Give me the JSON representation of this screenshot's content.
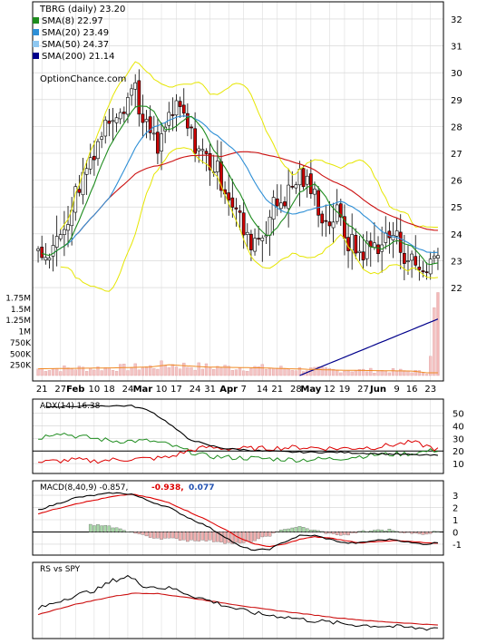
{
  "chart_data": {
    "type": "candlestick",
    "ticker_label": "TBRG (daily) 23.20",
    "watermark": "OptionChance.com",
    "legend": [
      {
        "label": "SMA(8) 22.97",
        "color": "#1e8c1e"
      },
      {
        "label": "SMA(20) 23.49",
        "color": "#2e8fd6"
      },
      {
        "label": "SMA(50) 24.37",
        "color": "#8ec7f0"
      },
      {
        "label": "SMA(200) 21.14",
        "color": "#00008b"
      }
    ],
    "price_ticks": [
      "32",
      "31",
      "30",
      "29",
      "28",
      "27",
      "26",
      "25",
      "24",
      "23",
      "22"
    ],
    "price_range": [
      21.8,
      32.2
    ],
    "volume_ticks": [
      "1.75M",
      "1.5M",
      "1.25M",
      "1M",
      "750K",
      "500K",
      "250K"
    ],
    "volume_range": [
      0,
      1900000
    ],
    "x_labels": [
      "21",
      "27",
      "Feb",
      "10",
      "18",
      "24",
      "Mar",
      "10",
      "17",
      "24",
      "31",
      "Apr",
      "7",
      "14",
      "21",
      "28",
      "May",
      "12",
      "19",
      "27",
      "Jun",
      "9",
      "16",
      "23"
    ],
    "bold_x_labels": [
      "Feb",
      "Mar",
      "Apr",
      "May",
      "Jun"
    ],
    "price_key_points": [
      [
        0,
        23.3
      ],
      [
        5,
        23.6
      ],
      [
        10,
        25.5
      ],
      [
        15,
        27.2
      ],
      [
        20,
        28.6
      ],
      [
        23,
        28.9
      ],
      [
        26,
        29.6
      ],
      [
        28,
        28.0
      ],
      [
        30,
        27.8
      ],
      [
        32,
        27.0
      ],
      [
        35,
        28.4
      ],
      [
        38,
        28.6
      ],
      [
        41,
        27.6
      ],
      [
        44,
        27.0
      ],
      [
        48,
        26.3
      ],
      [
        51,
        25.5
      ],
      [
        54,
        24.5
      ],
      [
        56,
        23.7
      ],
      [
        60,
        24.0
      ],
      [
        63,
        25.0
      ],
      [
        67,
        25.5
      ],
      [
        70,
        26.2
      ],
      [
        74,
        25.4
      ],
      [
        77,
        24.4
      ],
      [
        80,
        24.7
      ],
      [
        83,
        23.7
      ],
      [
        86,
        23.3
      ],
      [
        89,
        23.5
      ],
      [
        92,
        23.7
      ],
      [
        95,
        24.0
      ],
      [
        98,
        23.3
      ],
      [
        101,
        22.8
      ],
      [
        103,
        22.6
      ],
      [
        105,
        23.0
      ],
      [
        107,
        23.2
      ]
    ],
    "volume_key_points": [
      [
        0,
        150000
      ],
      [
        20,
        170000
      ],
      [
        30,
        190000
      ],
      [
        35,
        240000
      ],
      [
        45,
        190000
      ],
      [
        60,
        170000
      ],
      [
        80,
        120000
      ],
      [
        100,
        100000
      ],
      [
        104,
        60000
      ],
      [
        107,
        1850000
      ]
    ],
    "adx": {
      "title": "ADX(14) 16.38",
      "ticks": [
        "50",
        "40",
        "30",
        "20",
        "10"
      ],
      "range": [
        5,
        57
      ],
      "reference_line": 20,
      "adx_key_points": [
        [
          0,
          55
        ],
        [
          15,
          56
        ],
        [
          25,
          56
        ],
        [
          30,
          52
        ],
        [
          35,
          42
        ],
        [
          40,
          30
        ],
        [
          45,
          25
        ],
        [
          50,
          22
        ],
        [
          60,
          20
        ],
        [
          70,
          19
        ],
        [
          80,
          19
        ],
        [
          90,
          18
        ],
        [
          100,
          17
        ],
        [
          107,
          16.4
        ]
      ],
      "plus_di_key_points": [
        [
          0,
          30
        ],
        [
          5,
          35
        ],
        [
          10,
          32
        ],
        [
          15,
          30
        ],
        [
          20,
          28
        ],
        [
          30,
          28
        ],
        [
          35,
          25
        ],
        [
          40,
          20
        ],
        [
          45,
          16
        ],
        [
          50,
          15
        ],
        [
          60,
          14
        ],
        [
          70,
          13
        ],
        [
          80,
          14
        ],
        [
          90,
          17
        ],
        [
          100,
          18
        ],
        [
          107,
          21
        ]
      ],
      "minus_di_key_points": [
        [
          0,
          11
        ],
        [
          5,
          12
        ],
        [
          10,
          13
        ],
        [
          15,
          12
        ],
        [
          20,
          13
        ],
        [
          30,
          14
        ],
        [
          35,
          15
        ],
        [
          40,
          20
        ],
        [
          45,
          23
        ],
        [
          50,
          22
        ],
        [
          60,
          22
        ],
        [
          70,
          23
        ],
        [
          80,
          22
        ],
        [
          90,
          23
        ],
        [
          100,
          27
        ],
        [
          104,
          24
        ],
        [
          107,
          21
        ]
      ]
    },
    "macd": {
      "title": "MACD(8,40,9) -0.857,",
      "signal_value": "-0.938,",
      "hist_value": "0.077",
      "ticks": [
        "3",
        "2",
        "1",
        "0",
        "-1"
      ],
      "range": [
        -1.6,
        3.6
      ],
      "macd_key_points": [
        [
          0,
          1.8
        ],
        [
          10,
          2.8
        ],
        [
          20,
          3.2
        ],
        [
          25,
          3.1
        ],
        [
          30,
          2.5
        ],
        [
          35,
          2.0
        ],
        [
          40,
          1.2
        ],
        [
          45,
          0.5
        ],
        [
          50,
          -0.4
        ],
        [
          54,
          -1.2
        ],
        [
          58,
          -1.5
        ],
        [
          62,
          -1.4
        ],
        [
          66,
          -0.8
        ],
        [
          70,
          -0.3
        ],
        [
          74,
          -0.3
        ],
        [
          78,
          -0.6
        ],
        [
          82,
          -0.9
        ],
        [
          86,
          -0.9
        ],
        [
          90,
          -0.7
        ],
        [
          95,
          -0.6
        ],
        [
          100,
          -0.9
        ],
        [
          104,
          -1.0
        ],
        [
          107,
          -0.86
        ]
      ],
      "signal_key_points": [
        [
          0,
          1.5
        ],
        [
          10,
          2.3
        ],
        [
          20,
          2.9
        ],
        [
          25,
          3.1
        ],
        [
          30,
          2.8
        ],
        [
          35,
          2.4
        ],
        [
          40,
          1.7
        ],
        [
          45,
          1.0
        ],
        [
          50,
          0.2
        ],
        [
          54,
          -0.5
        ],
        [
          58,
          -1.0
        ],
        [
          62,
          -1.2
        ],
        [
          66,
          -1.0
        ],
        [
          70,
          -0.6
        ],
        [
          74,
          -0.4
        ],
        [
          78,
          -0.5
        ],
        [
          82,
          -0.7
        ],
        [
          86,
          -0.9
        ],
        [
          90,
          -0.8
        ],
        [
          95,
          -0.7
        ],
        [
          100,
          -0.8
        ],
        [
          104,
          -0.9
        ],
        [
          107,
          -0.94
        ]
      ]
    },
    "rs": {
      "title": "RS vs SPY",
      "range": [
        0,
        1
      ],
      "rs_key_points": [
        [
          0,
          0.4
        ],
        [
          8,
          0.6
        ],
        [
          16,
          0.75
        ],
        [
          20,
          0.9
        ],
        [
          24,
          0.98
        ],
        [
          28,
          0.82
        ],
        [
          32,
          0.78
        ],
        [
          36,
          0.76
        ],
        [
          42,
          0.62
        ],
        [
          48,
          0.5
        ],
        [
          54,
          0.38
        ],
        [
          60,
          0.3
        ],
        [
          66,
          0.26
        ],
        [
          72,
          0.2
        ],
        [
          78,
          0.16
        ],
        [
          84,
          0.12
        ],
        [
          90,
          0.1
        ],
        [
          96,
          0.08
        ],
        [
          100,
          0.06
        ],
        [
          104,
          0.05
        ],
        [
          107,
          0.07
        ]
      ],
      "rs_ma_key_points": [
        [
          0,
          0.3
        ],
        [
          10,
          0.48
        ],
        [
          20,
          0.62
        ],
        [
          26,
          0.68
        ],
        [
          32,
          0.67
        ],
        [
          40,
          0.6
        ],
        [
          50,
          0.5
        ],
        [
          60,
          0.4
        ],
        [
          70,
          0.32
        ],
        [
          80,
          0.24
        ],
        [
          90,
          0.18
        ],
        [
          100,
          0.14
        ],
        [
          107,
          0.11
        ]
      ]
    }
  }
}
